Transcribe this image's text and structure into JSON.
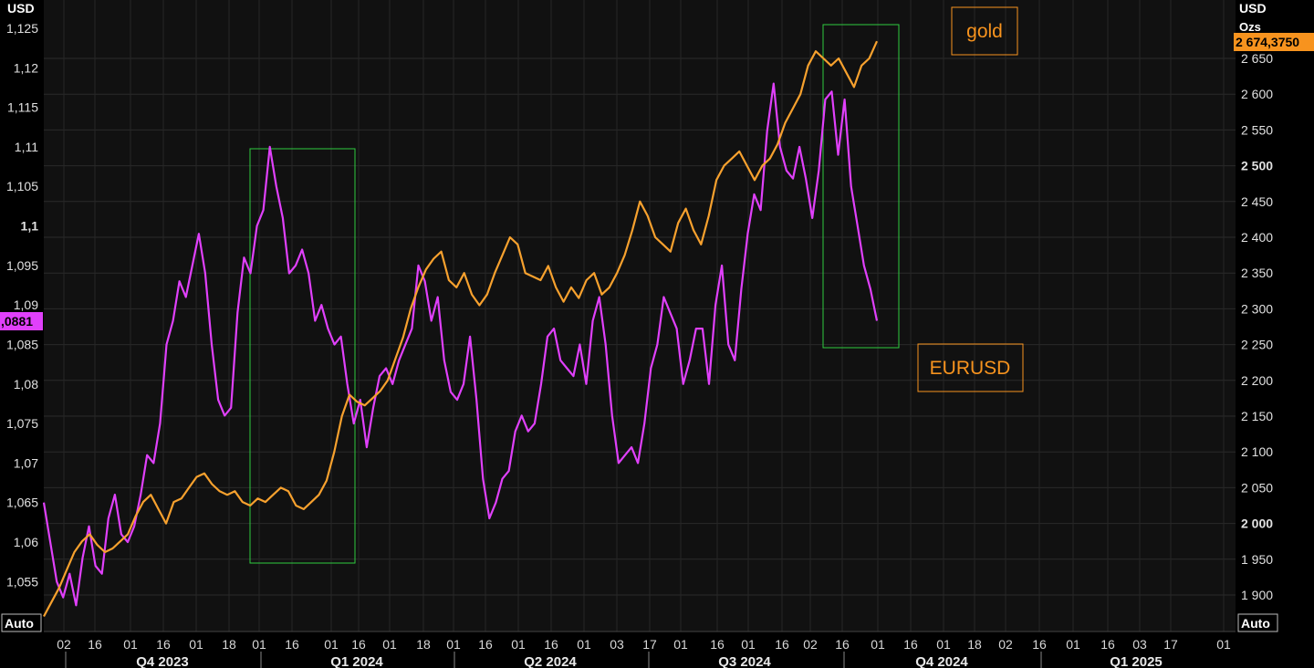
{
  "chart_data": {
    "type": "line",
    "left_axis": {
      "unit": "USD",
      "ticks": [
        "1,125",
        "1,12",
        "1,115",
        "1,11",
        "1,105",
        "1,1",
        "1,095",
        "1,09",
        "1,085",
        "1,08",
        "1,075",
        "1,07",
        "1,065",
        "1,06",
        "1,055"
      ],
      "tick_values": [
        1.125,
        1.12,
        1.115,
        1.11,
        1.105,
        1.1,
        1.095,
        1.09,
        1.085,
        1.08,
        1.075,
        1.07,
        1.065,
        1.06,
        1.055
      ],
      "range": [
        1.0527,
        1.1275
      ],
      "last_value_label": ",0881",
      "mode_button": "Auto"
    },
    "right_axis": {
      "unit": "USD",
      "unit2": "Ozs",
      "ticks": [
        "2 650",
        "2 600",
        "2 550",
        "2 500",
        "2 450",
        "2 400",
        "2 350",
        "2 300",
        "2 250",
        "2 200",
        "2 150",
        "2 100",
        "2 050",
        "2 000",
        "1 950",
        "1 900"
      ],
      "tick_values": [
        2650,
        2600,
        2550,
        2500,
        2450,
        2400,
        2350,
        2300,
        2250,
        2200,
        2150,
        2100,
        2050,
        2000,
        1950,
        1900
      ],
      "bold_ticks": [
        "2 500",
        "2 000"
      ],
      "range": [
        1855,
        2700
      ],
      "last_value_label": "2 674,3750",
      "mode_button": "Auto"
    },
    "x_axis": {
      "day_ticks": [
        "02",
        "16",
        "01",
        "16",
        "01",
        "18",
        "01",
        "16",
        "01",
        "16",
        "01",
        "18",
        "01",
        "16",
        "01",
        "16",
        "01",
        "03",
        "17",
        "01",
        "16",
        "01",
        "16",
        "02",
        "16",
        "01",
        "16",
        "01",
        "18",
        "02",
        "16",
        "01",
        "16",
        "03",
        "17",
        "01"
      ],
      "quarters": [
        "Q4 2023",
        "Q1 2024",
        "Q2 2024",
        "Q3 2024",
        "Q4 2024",
        "Q1 2025"
      ]
    },
    "series": [
      {
        "name": "EURUSD",
        "color": "#e040fb",
        "axis": "left",
        "points": [
          [
            0,
            1.065
          ],
          [
            1,
            1.06
          ],
          [
            2,
            1.055
          ],
          [
            3,
            1.053
          ],
          [
            4,
            1.056
          ],
          [
            5,
            1.052
          ],
          [
            6,
            1.058
          ],
          [
            7,
            1.062
          ],
          [
            8,
            1.057
          ],
          [
            9,
            1.056
          ],
          [
            10,
            1.063
          ],
          [
            11,
            1.066
          ],
          [
            12,
            1.061
          ],
          [
            13,
            1.06
          ],
          [
            14,
            1.062
          ],
          [
            15,
            1.066
          ],
          [
            16,
            1.071
          ],
          [
            17,
            1.07
          ],
          [
            18,
            1.075
          ],
          [
            19,
            1.085
          ],
          [
            20,
            1.088
          ],
          [
            21,
            1.093
          ],
          [
            22,
            1.091
          ],
          [
            23,
            1.095
          ],
          [
            24,
            1.099
          ],
          [
            25,
            1.094
          ],
          [
            26,
            1.085
          ],
          [
            27,
            1.078
          ],
          [
            28,
            1.076
          ],
          [
            29,
            1.077
          ],
          [
            30,
            1.089
          ],
          [
            31,
            1.096
          ],
          [
            32,
            1.094
          ],
          [
            33,
            1.1
          ],
          [
            34,
            1.102
          ],
          [
            35,
            1.11
          ],
          [
            36,
            1.105
          ],
          [
            37,
            1.101
          ],
          [
            38,
            1.094
          ],
          [
            39,
            1.095
          ],
          [
            40,
            1.097
          ],
          [
            41,
            1.094
          ],
          [
            42,
            1.088
          ],
          [
            43,
            1.09
          ],
          [
            44,
            1.087
          ],
          [
            45,
            1.085
          ],
          [
            46,
            1.086
          ],
          [
            47,
            1.08
          ],
          [
            48,
            1.075
          ],
          [
            49,
            1.078
          ],
          [
            50,
            1.072
          ],
          [
            51,
            1.077
          ],
          [
            52,
            1.081
          ],
          [
            53,
            1.082
          ],
          [
            54,
            1.08
          ],
          [
            55,
            1.083
          ],
          [
            56,
            1.085
          ],
          [
            57,
            1.087
          ],
          [
            58,
            1.095
          ],
          [
            59,
            1.093
          ],
          [
            60,
            1.088
          ],
          [
            61,
            1.091
          ],
          [
            62,
            1.083
          ],
          [
            63,
            1.079
          ],
          [
            64,
            1.078
          ],
          [
            65,
            1.08
          ],
          [
            66,
            1.086
          ],
          [
            67,
            1.078
          ],
          [
            68,
            1.068
          ],
          [
            69,
            1.063
          ],
          [
            70,
            1.065
          ],
          [
            71,
            1.068
          ],
          [
            72,
            1.069
          ],
          [
            73,
            1.074
          ],
          [
            74,
            1.076
          ],
          [
            75,
            1.074
          ],
          [
            76,
            1.075
          ],
          [
            77,
            1.08
          ],
          [
            78,
            1.086
          ],
          [
            79,
            1.087
          ],
          [
            80,
            1.083
          ],
          [
            81,
            1.082
          ],
          [
            82,
            1.081
          ],
          [
            83,
            1.085
          ],
          [
            84,
            1.08
          ],
          [
            85,
            1.088
          ],
          [
            86,
            1.091
          ],
          [
            87,
            1.085
          ],
          [
            88,
            1.076
          ],
          [
            89,
            1.07
          ],
          [
            90,
            1.071
          ],
          [
            91,
            1.072
          ],
          [
            92,
            1.07
          ],
          [
            93,
            1.075
          ],
          [
            94,
            1.082
          ],
          [
            95,
            1.085
          ],
          [
            96,
            1.091
          ],
          [
            97,
            1.089
          ],
          [
            98,
            1.087
          ],
          [
            99,
            1.08
          ],
          [
            100,
            1.083
          ],
          [
            101,
            1.087
          ],
          [
            102,
            1.087
          ],
          [
            103,
            1.08
          ],
          [
            104,
            1.09
          ],
          [
            105,
            1.095
          ],
          [
            106,
            1.085
          ],
          [
            107,
            1.083
          ],
          [
            108,
            1.092
          ],
          [
            109,
            1.099
          ],
          [
            110,
            1.104
          ],
          [
            111,
            1.102
          ],
          [
            112,
            1.112
          ],
          [
            113,
            1.118
          ],
          [
            114,
            1.11
          ],
          [
            115,
            1.107
          ],
          [
            116,
            1.106
          ],
          [
            117,
            1.11
          ],
          [
            118,
            1.106
          ],
          [
            119,
            1.101
          ],
          [
            120,
            1.107
          ],
          [
            121,
            1.116
          ],
          [
            122,
            1.117
          ],
          [
            123,
            1.109
          ],
          [
            124,
            1.116
          ],
          [
            125,
            1.105
          ],
          [
            126,
            1.1
          ],
          [
            127,
            1.095
          ],
          [
            128,
            1.092
          ],
          [
            129,
            1.088
          ]
        ]
      },
      {
        "name": "gold",
        "color": "#f7a12e",
        "axis": "right",
        "points": [
          [
            0,
            1870
          ],
          [
            1,
            1890
          ],
          [
            2,
            1910
          ],
          [
            3,
            1935
          ],
          [
            4,
            1960
          ],
          [
            5,
            1975
          ],
          [
            6,
            1985
          ],
          [
            7,
            1970
          ],
          [
            8,
            1960
          ],
          [
            9,
            1965
          ],
          [
            10,
            1975
          ],
          [
            11,
            1985
          ],
          [
            12,
            2010
          ],
          [
            13,
            2030
          ],
          [
            14,
            2040
          ],
          [
            15,
            2020
          ],
          [
            16,
            2000
          ],
          [
            17,
            2030
          ],
          [
            18,
            2035
          ],
          [
            19,
            2050
          ],
          [
            20,
            2065
          ],
          [
            21,
            2070
          ],
          [
            22,
            2055
          ],
          [
            23,
            2045
          ],
          [
            24,
            2040
          ],
          [
            25,
            2045
          ],
          [
            26,
            2030
          ],
          [
            27,
            2025
          ],
          [
            28,
            2035
          ],
          [
            29,
            2030
          ],
          [
            30,
            2040
          ],
          [
            31,
            2050
          ],
          [
            32,
            2045
          ],
          [
            33,
            2025
          ],
          [
            34,
            2020
          ],
          [
            35,
            2030
          ],
          [
            36,
            2040
          ],
          [
            37,
            2060
          ],
          [
            38,
            2100
          ],
          [
            39,
            2150
          ],
          [
            40,
            2180
          ],
          [
            41,
            2170
          ],
          [
            42,
            2165
          ],
          [
            43,
            2175
          ],
          [
            44,
            2185
          ],
          [
            45,
            2200
          ],
          [
            46,
            2230
          ],
          [
            47,
            2260
          ],
          [
            48,
            2300
          ],
          [
            49,
            2330
          ],
          [
            50,
            2355
          ],
          [
            51,
            2370
          ],
          [
            52,
            2380
          ],
          [
            53,
            2340
          ],
          [
            54,
            2330
          ],
          [
            55,
            2350
          ],
          [
            56,
            2320
          ],
          [
            57,
            2305
          ],
          [
            58,
            2320
          ],
          [
            59,
            2350
          ],
          [
            60,
            2375
          ],
          [
            61,
            2400
          ],
          [
            62,
            2390
          ],
          [
            63,
            2350
          ],
          [
            64,
            2345
          ],
          [
            65,
            2340
          ],
          [
            66,
            2360
          ],
          [
            67,
            2330
          ],
          [
            68,
            2310
          ],
          [
            69,
            2330
          ],
          [
            70,
            2315
          ],
          [
            71,
            2340
          ],
          [
            72,
            2350
          ],
          [
            73,
            2320
          ],
          [
            74,
            2330
          ],
          [
            75,
            2350
          ],
          [
            76,
            2375
          ],
          [
            77,
            2410
          ],
          [
            78,
            2450
          ],
          [
            79,
            2430
          ],
          [
            80,
            2400
          ],
          [
            81,
            2390
          ],
          [
            82,
            2380
          ],
          [
            83,
            2420
          ],
          [
            84,
            2440
          ],
          [
            85,
            2410
          ],
          [
            86,
            2390
          ],
          [
            87,
            2430
          ],
          [
            88,
            2480
          ],
          [
            89,
            2500
          ],
          [
            90,
            2510
          ],
          [
            91,
            2520
          ],
          [
            92,
            2500
          ],
          [
            93,
            2480
          ],
          [
            94,
            2500
          ],
          [
            95,
            2510
          ],
          [
            96,
            2530
          ],
          [
            97,
            2560
          ],
          [
            98,
            2580
          ],
          [
            99,
            2600
          ],
          [
            100,
            2640
          ],
          [
            101,
            2660
          ],
          [
            102,
            2650
          ],
          [
            103,
            2640
          ],
          [
            104,
            2650
          ],
          [
            105,
            2630
          ],
          [
            106,
            2610
          ],
          [
            107,
            2640
          ],
          [
            108,
            2650
          ],
          [
            109,
            2674
          ]
        ]
      }
    ],
    "annotations": [
      {
        "label": "gold",
        "color": "#f7931e"
      },
      {
        "label": "EURUSD",
        "color": "#f7931e"
      }
    ]
  }
}
